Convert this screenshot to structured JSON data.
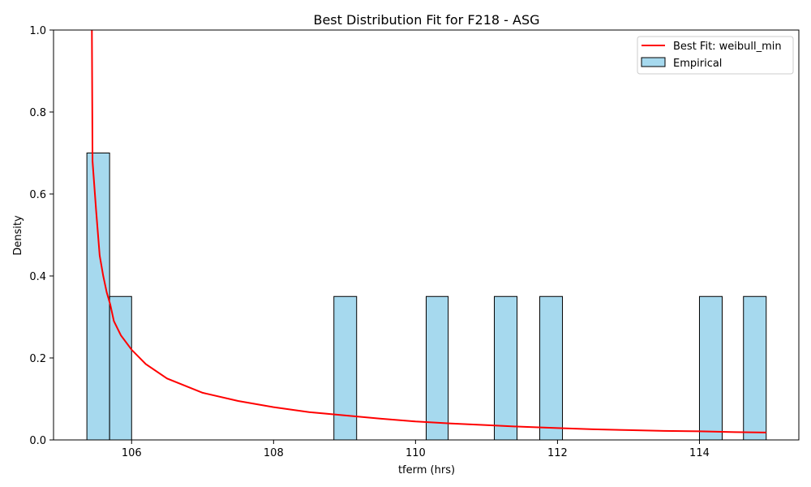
{
  "chart_data": {
    "type": "bar",
    "title": "Best Distribution Fit for F218 - ASG",
    "xlabel": "tferm (hrs)",
    "ylabel": "Density",
    "xlim": [
      104.9,
      115.4
    ],
    "ylim": [
      0,
      1.0
    ],
    "xticks": [
      106,
      108,
      110,
      112,
      114
    ],
    "yticks": [
      0.0,
      0.2,
      0.4,
      0.6,
      0.8,
      1.0
    ],
    "grid": false,
    "legend_position": "top-right",
    "histogram": {
      "name": "Empirical",
      "fill_color": "#a6d9ee",
      "edge_color": "#000000",
      "bins": [
        {
          "x0": 105.37,
          "x1": 105.69,
          "density": 0.7
        },
        {
          "x0": 105.69,
          "x1": 106.0,
          "density": 0.35
        },
        {
          "x0": 108.85,
          "x1": 109.17,
          "density": 0.35
        },
        {
          "x0": 110.15,
          "x1": 110.46,
          "density": 0.35
        },
        {
          "x0": 111.11,
          "x1": 111.43,
          "density": 0.35
        },
        {
          "x0": 111.75,
          "x1": 112.07,
          "density": 0.35
        },
        {
          "x0": 114.0,
          "x1": 114.32,
          "density": 0.35
        },
        {
          "x0": 114.62,
          "x1": 114.94,
          "density": 0.35
        }
      ]
    },
    "fit_curve": {
      "name": "Best Fit: weibull_min",
      "color": "#ff0000",
      "points": [
        [
          105.44,
          1.0
        ],
        [
          105.45,
          0.68
        ],
        [
          105.5,
          0.56
        ],
        [
          105.55,
          0.45
        ],
        [
          105.6,
          0.4
        ],
        [
          105.65,
          0.36
        ],
        [
          105.7,
          0.33
        ],
        [
          105.75,
          0.29
        ],
        [
          105.85,
          0.255
        ],
        [
          106.0,
          0.22
        ],
        [
          106.2,
          0.185
        ],
        [
          106.5,
          0.15
        ],
        [
          107.0,
          0.115
        ],
        [
          107.5,
          0.095
        ],
        [
          108.0,
          0.08
        ],
        [
          108.5,
          0.068
        ],
        [
          109.0,
          0.06
        ],
        [
          109.5,
          0.052
        ],
        [
          110.0,
          0.045
        ],
        [
          110.5,
          0.04
        ],
        [
          111.0,
          0.036
        ],
        [
          111.5,
          0.032
        ],
        [
          112.0,
          0.029
        ],
        [
          112.5,
          0.026
        ],
        [
          113.0,
          0.024
        ],
        [
          113.5,
          0.022
        ],
        [
          114.0,
          0.021
        ],
        [
          114.5,
          0.019
        ],
        [
          114.94,
          0.018
        ]
      ]
    }
  }
}
